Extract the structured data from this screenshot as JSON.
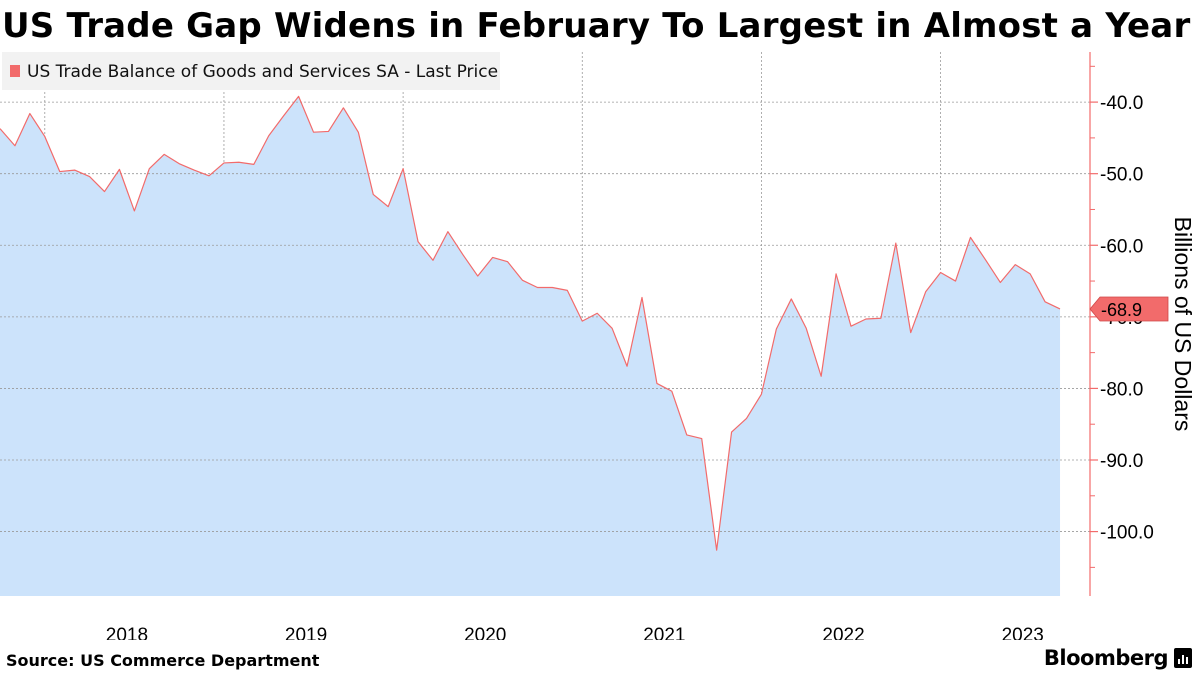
{
  "title": "US Trade Gap Widens in February To Largest in Almost a Year",
  "source": "Source: US Commerce Department",
  "brand": "Bloomberg",
  "colors": {
    "line": "#f26b6b",
    "area": "#cce3fb",
    "grid": "#9a9a9a",
    "axis": "#f26b6b",
    "legend_bg": "#f2f2f2"
  },
  "chart_data": {
    "type": "area",
    "legend": [
      "US Trade Balance of Goods and Services SA - Last Price"
    ],
    "ylabel": "Billions of US Dollars",
    "ylim": [
      -109,
      -33
    ],
    "yticks": [
      -40,
      -50,
      -60,
      -70,
      -80,
      -90,
      -100
    ],
    "ytick_labels": [
      "-40.0",
      "-50.0",
      "-60.0",
      "-70.0",
      "-80.0",
      "-90.0",
      "-100.0"
    ],
    "year_labels": [
      "2018",
      "2019",
      "2020",
      "2021",
      "2022",
      "2023"
    ],
    "x_start": "2017-10",
    "last_value_label": "-68.9",
    "last_value": -68.9,
    "series": [
      {
        "name": "US Trade Balance of Goods and Services SA - Last Price",
        "values": [
          -43.7,
          -46.1,
          -41.6,
          -44.8,
          -49.7,
          -49.5,
          -50.4,
          -52.5,
          -49.4,
          -55.2,
          -49.3,
          -47.3,
          -48.6,
          -49.5,
          -50.3,
          -48.5,
          -48.4,
          -48.7,
          -44.7,
          -41.9,
          -39.2,
          -44.2,
          -44.1,
          -40.8,
          -44.2,
          -52.9,
          -54.6,
          -49.3,
          -59.5,
          -62.1,
          -58.1,
          -61.3,
          -64.3,
          -61.7,
          -62.3,
          -64.9,
          -65.9,
          -65.9,
          -66.3,
          -70.6,
          -69.5,
          -71.6,
          -76.9,
          -67.3,
          -79.3,
          -80.4,
          -86.5,
          -87.0,
          -102.6,
          -86.1,
          -84.2,
          -80.8,
          -71.7,
          -67.5,
          -71.6,
          -78.3,
          -64.0,
          -71.3,
          -70.3,
          -70.2,
          -59.7,
          -72.2,
          -66.5,
          -63.8,
          -65.0,
          -58.9,
          -62.0,
          -65.2,
          -62.7,
          -64.0,
          -67.9,
          -68.9
        ]
      }
    ]
  }
}
